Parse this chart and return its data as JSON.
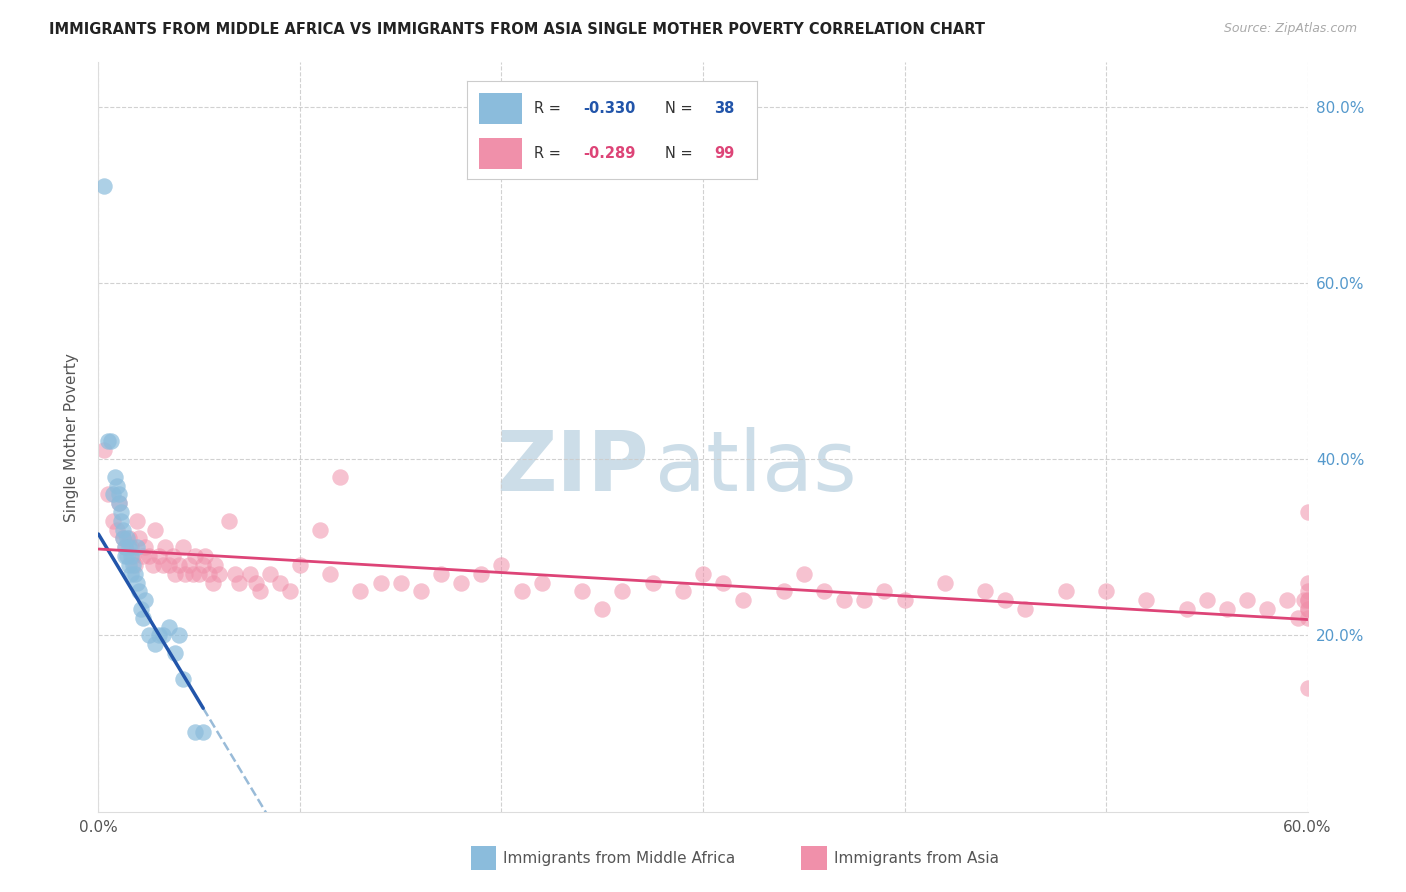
{
  "title": "IMMIGRANTS FROM MIDDLE AFRICA VS IMMIGRANTS FROM ASIA SINGLE MOTHER POVERTY CORRELATION CHART",
  "source": "Source: ZipAtlas.com",
  "ylabel": "Single Mother Poverty",
  "xlim": [
    0,
    0.6
  ],
  "ylim": [
    0,
    0.85
  ],
  "blue_color": "#8bbcdc",
  "pink_color": "#f090aa",
  "trend_blue": "#2255aa",
  "trend_pink": "#dd4477",
  "trend_dashed_color": "#99bbd8",
  "grid_color": "#cccccc",
  "right_tick_color": "#5599cc",
  "blue_x": [
    0.003,
    0.005,
    0.006,
    0.007,
    0.008,
    0.009,
    0.01,
    0.01,
    0.011,
    0.011,
    0.012,
    0.012,
    0.013,
    0.013,
    0.014,
    0.014,
    0.015,
    0.015,
    0.016,
    0.016,
    0.017,
    0.018,
    0.019,
    0.019,
    0.02,
    0.021,
    0.022,
    0.023,
    0.025,
    0.028,
    0.03,
    0.032,
    0.035,
    0.038,
    0.04,
    0.042,
    0.048,
    0.052
  ],
  "blue_y": [
    0.71,
    0.42,
    0.42,
    0.36,
    0.38,
    0.37,
    0.36,
    0.35,
    0.34,
    0.33,
    0.32,
    0.31,
    0.3,
    0.29,
    0.31,
    0.29,
    0.3,
    0.28,
    0.29,
    0.27,
    0.28,
    0.27,
    0.26,
    0.3,
    0.25,
    0.23,
    0.22,
    0.24,
    0.2,
    0.19,
    0.2,
    0.2,
    0.21,
    0.18,
    0.2,
    0.15,
    0.09,
    0.09
  ],
  "pink_x": [
    0.003,
    0.005,
    0.007,
    0.009,
    0.01,
    0.012,
    0.013,
    0.015,
    0.016,
    0.017,
    0.018,
    0.019,
    0.02,
    0.022,
    0.023,
    0.025,
    0.027,
    0.028,
    0.03,
    0.032,
    0.033,
    0.035,
    0.037,
    0.038,
    0.04,
    0.042,
    0.043,
    0.045,
    0.047,
    0.048,
    0.05,
    0.052,
    0.053,
    0.055,
    0.057,
    0.058,
    0.06,
    0.065,
    0.068,
    0.07,
    0.075,
    0.078,
    0.08,
    0.085,
    0.09,
    0.095,
    0.1,
    0.11,
    0.115,
    0.12,
    0.13,
    0.14,
    0.15,
    0.16,
    0.17,
    0.18,
    0.19,
    0.2,
    0.21,
    0.22,
    0.24,
    0.25,
    0.26,
    0.275,
    0.29,
    0.3,
    0.31,
    0.32,
    0.34,
    0.35,
    0.36,
    0.37,
    0.38,
    0.39,
    0.4,
    0.42,
    0.44,
    0.45,
    0.46,
    0.48,
    0.5,
    0.52,
    0.54,
    0.55,
    0.56,
    0.57,
    0.58,
    0.59,
    0.595,
    0.598,
    0.6,
    0.6,
    0.6,
    0.6,
    0.6,
    0.6,
    0.6,
    0.6,
    0.6
  ],
  "pink_y": [
    0.41,
    0.36,
    0.33,
    0.32,
    0.35,
    0.31,
    0.3,
    0.31,
    0.3,
    0.29,
    0.28,
    0.33,
    0.31,
    0.29,
    0.3,
    0.29,
    0.28,
    0.32,
    0.29,
    0.28,
    0.3,
    0.28,
    0.29,
    0.27,
    0.28,
    0.3,
    0.27,
    0.28,
    0.27,
    0.29,
    0.27,
    0.28,
    0.29,
    0.27,
    0.26,
    0.28,
    0.27,
    0.33,
    0.27,
    0.26,
    0.27,
    0.26,
    0.25,
    0.27,
    0.26,
    0.25,
    0.28,
    0.32,
    0.27,
    0.38,
    0.25,
    0.26,
    0.26,
    0.25,
    0.27,
    0.26,
    0.27,
    0.28,
    0.25,
    0.26,
    0.25,
    0.23,
    0.25,
    0.26,
    0.25,
    0.27,
    0.26,
    0.24,
    0.25,
    0.27,
    0.25,
    0.24,
    0.24,
    0.25,
    0.24,
    0.26,
    0.25,
    0.24,
    0.23,
    0.25,
    0.25,
    0.24,
    0.23,
    0.24,
    0.23,
    0.24,
    0.23,
    0.24,
    0.22,
    0.24,
    0.26,
    0.25,
    0.23,
    0.24,
    0.23,
    0.22,
    0.24,
    0.34,
    0.14
  ],
  "blue_trend_x0": 0.0,
  "blue_trend_x_solid_end": 0.052,
  "blue_trend_x_dashed_end": 0.32,
  "blue_trend_y0": 0.315,
  "blue_trend_slope": -3.8,
  "pink_trend_x0": 0.0,
  "pink_trend_x1": 0.6,
  "pink_trend_y0": 0.298,
  "pink_trend_y1": 0.218
}
